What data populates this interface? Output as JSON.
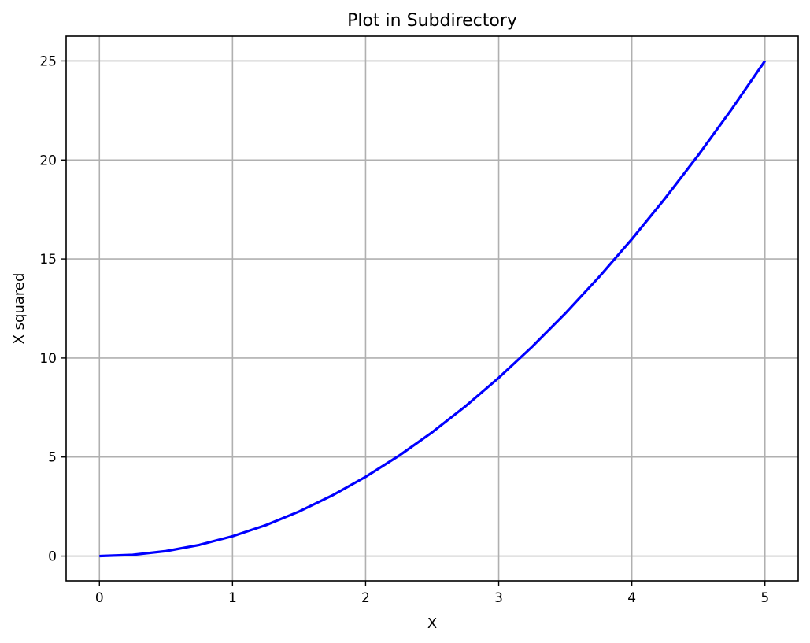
{
  "chart_data": {
    "type": "line",
    "title": "Plot in Subdirectory",
    "xlabel": "X",
    "ylabel": "X squared",
    "xlim": [
      -0.25,
      5.25
    ],
    "ylim": [
      -1.25,
      26.25
    ],
    "x_ticks": [
      0,
      1,
      2,
      3,
      4,
      5
    ],
    "x_tick_labels": [
      "0",
      "1",
      "2",
      "3",
      "4",
      "5"
    ],
    "y_ticks": [
      0,
      5,
      10,
      15,
      20,
      25
    ],
    "y_tick_labels": [
      "0",
      "5",
      "10",
      "15",
      "20",
      "25"
    ],
    "grid": true,
    "legend": "none",
    "series": [
      {
        "color": "#0000ff",
        "x": [
          0,
          0.25,
          0.5,
          0.75,
          1,
          1.25,
          1.5,
          1.75,
          2,
          2.25,
          2.5,
          2.75,
          3,
          3.25,
          3.5,
          3.75,
          4,
          4.25,
          4.5,
          4.75,
          5
        ],
        "y": [
          0,
          0.0625,
          0.25,
          0.5625,
          1,
          1.5625,
          2.25,
          3.0625,
          4,
          5.0625,
          6.25,
          7.5625,
          9,
          10.5625,
          12.25,
          14.0625,
          16,
          18.0625,
          20.25,
          22.5625,
          25
        ]
      }
    ]
  }
}
